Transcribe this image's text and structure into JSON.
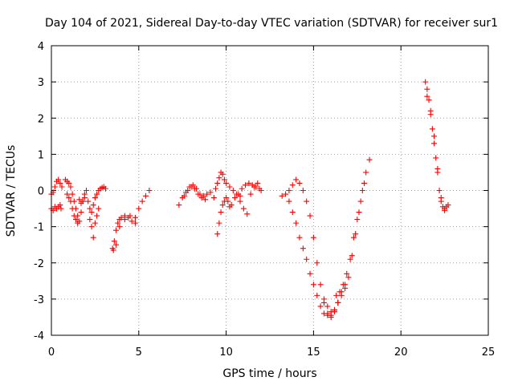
{
  "chart_data": {
    "type": "scatter",
    "title": "Day 104 of 2021, Sidereal Day-to-day VTEC variation (SDTVAR) for receiver sur1",
    "xlabel": "GPS time / hours",
    "ylabel": "SDTVAR / TECUs",
    "xlim": [
      0,
      25
    ],
    "ylim": [
      -4,
      4
    ],
    "xticks": [
      0,
      5,
      10,
      15,
      20,
      25
    ],
    "yticks": [
      -4,
      -3,
      -2,
      -1,
      0,
      1,
      2,
      3,
      4
    ],
    "grid": true,
    "marker": "+",
    "color": "#ff0000",
    "series": [
      {
        "name": "sur1",
        "x": [
          0.0,
          0.1,
          0.2,
          0.3,
          0.4,
          0.5,
          0.6,
          0.0,
          0.1,
          0.2,
          0.3,
          0.4,
          0.5,
          0.55,
          0.8,
          0.9,
          1.0,
          1.1,
          1.2,
          1.3,
          1.4,
          1.5,
          1.6,
          1.7,
          1.8,
          1.9,
          2.0,
          0.9,
          1.0,
          1.1,
          1.2,
          1.3,
          1.4,
          1.5,
          1.6,
          1.7,
          1.8,
          1.9,
          2.1,
          2.2,
          2.3,
          2.4,
          2.5,
          2.6,
          2.7,
          2.8,
          2.9,
          3.0,
          3.1,
          2.2,
          2.3,
          2.4,
          2.5,
          2.6,
          2.7,
          3.5,
          3.6,
          3.7,
          3.8,
          3.9,
          4.0,
          4.2,
          4.4,
          4.6,
          4.8,
          5.0,
          5.2,
          5.4,
          5.6,
          3.55,
          3.7,
          3.9,
          4.2,
          4.5,
          4.8,
          7.3,
          7.5,
          7.7,
          7.9,
          8.1,
          8.3,
          8.5,
          8.7,
          8.9,
          9.1,
          9.3,
          7.6,
          7.8,
          8.0,
          8.2,
          8.4,
          8.6,
          8.8,
          9.4,
          9.5,
          9.6,
          9.7,
          9.8,
          9.9,
          10.0,
          10.2,
          10.4,
          10.6,
          10.8,
          9.5,
          9.6,
          9.7,
          9.8,
          9.9,
          10.0,
          10.1,
          10.2,
          10.3,
          10.5,
          10.7,
          10.9,
          11.1,
          11.3,
          11.5,
          11.7,
          11.9,
          12.0,
          10.8,
          11.0,
          11.2,
          11.4,
          11.6,
          11.8,
          13.2,
          13.4,
          13.6,
          13.8,
          14.0,
          14.2,
          14.4,
          14.6,
          14.8,
          15.0,
          15.2,
          15.4,
          15.6,
          15.8,
          16.0,
          16.2,
          16.4,
          16.6,
          16.8,
          13.6,
          13.8,
          14.0,
          14.2,
          14.4,
          14.6,
          14.8,
          15.0,
          15.2,
          15.4,
          15.6,
          15.8,
          16.0,
          16.2,
          16.4,
          15.6,
          15.8,
          16.0,
          16.2,
          16.4,
          16.6,
          16.8,
          17.0,
          17.2,
          17.4,
          17.6,
          17.8,
          18.0,
          18.2,
          16.3,
          16.5,
          16.7,
          16.9,
          17.1,
          17.3,
          17.5,
          17.7,
          17.9,
          21.4,
          21.5,
          21.6,
          21.7,
          21.8,
          21.9,
          22.0,
          22.1,
          22.2,
          22.3,
          22.4,
          22.5,
          22.6,
          22.7,
          21.5,
          21.7,
          21.9,
          22.1,
          22.3,
          22.5
        ],
        "y": [
          -0.1,
          -0.05,
          0.1,
          0.25,
          0.3,
          0.2,
          0.1,
          -0.5,
          -0.55,
          -0.45,
          -0.5,
          -0.45,
          -0.4,
          -0.5,
          0.3,
          0.25,
          0.2,
          0.1,
          -0.1,
          -0.3,
          -0.5,
          -0.7,
          -0.85,
          -0.6,
          -0.3,
          -0.1,
          0.0,
          -0.1,
          -0.2,
          -0.3,
          -0.5,
          -0.7,
          -0.8,
          -0.9,
          -0.25,
          -0.35,
          -0.3,
          -0.2,
          -0.3,
          -0.5,
          -0.6,
          -0.4,
          -0.2,
          -0.1,
          0.0,
          0.05,
          0.08,
          0.1,
          0.05,
          -0.8,
          -1.0,
          -1.3,
          -0.9,
          -0.7,
          -0.5,
          -1.6,
          -1.4,
          -1.1,
          -0.9,
          -0.8,
          -0.75,
          -0.7,
          -0.75,
          -0.85,
          -0.75,
          -0.5,
          -0.3,
          -0.15,
          0.0,
          -1.65,
          -1.5,
          -1.0,
          -0.8,
          -0.7,
          -0.9,
          -0.4,
          -0.2,
          -0.05,
          0.1,
          0.15,
          0.05,
          -0.1,
          -0.15,
          -0.1,
          -0.05,
          -0.2,
          -0.15,
          0.0,
          0.1,
          0.05,
          -0.1,
          -0.2,
          -0.25,
          0.05,
          0.2,
          0.35,
          0.5,
          0.45,
          0.3,
          0.2,
          0.1,
          0.0,
          -0.1,
          -0.15,
          -1.2,
          -0.9,
          -0.6,
          -0.4,
          -0.3,
          -0.2,
          -0.3,
          -0.45,
          -0.4,
          -0.2,
          -0.1,
          0.05,
          0.15,
          0.2,
          0.15,
          0.1,
          0.05,
          0.0,
          -0.3,
          -0.5,
          -0.65,
          -0.1,
          0.1,
          0.2,
          -0.15,
          -0.1,
          0.0,
          0.15,
          0.3,
          0.2,
          0.0,
          -0.3,
          -0.7,
          -1.3,
          -2.0,
          -2.6,
          -3.1,
          -3.4,
          -3.5,
          -3.35,
          -3.1,
          -2.8,
          -2.6,
          -0.3,
          -0.6,
          -0.9,
          -1.3,
          -1.6,
          -1.9,
          -2.3,
          -2.6,
          -2.9,
          -3.2,
          -3.4,
          -3.45,
          -3.45,
          -3.3,
          -3.1,
          -3.0,
          -3.2,
          -3.35,
          -3.3,
          -3.1,
          -2.9,
          -2.7,
          -2.4,
          -1.8,
          -1.2,
          -0.6,
          0.0,
          0.5,
          0.85,
          -2.9,
          -2.8,
          -2.6,
          -2.3,
          -1.9,
          -1.3,
          -0.8,
          -0.3,
          0.2,
          3.0,
          2.8,
          2.5,
          2.1,
          1.7,
          1.3,
          0.9,
          0.5,
          0.0,
          -0.3,
          -0.45,
          -0.5,
          -0.45,
          -0.4,
          2.6,
          2.2,
          1.5,
          0.6,
          -0.2,
          -0.55
        ]
      }
    ]
  }
}
